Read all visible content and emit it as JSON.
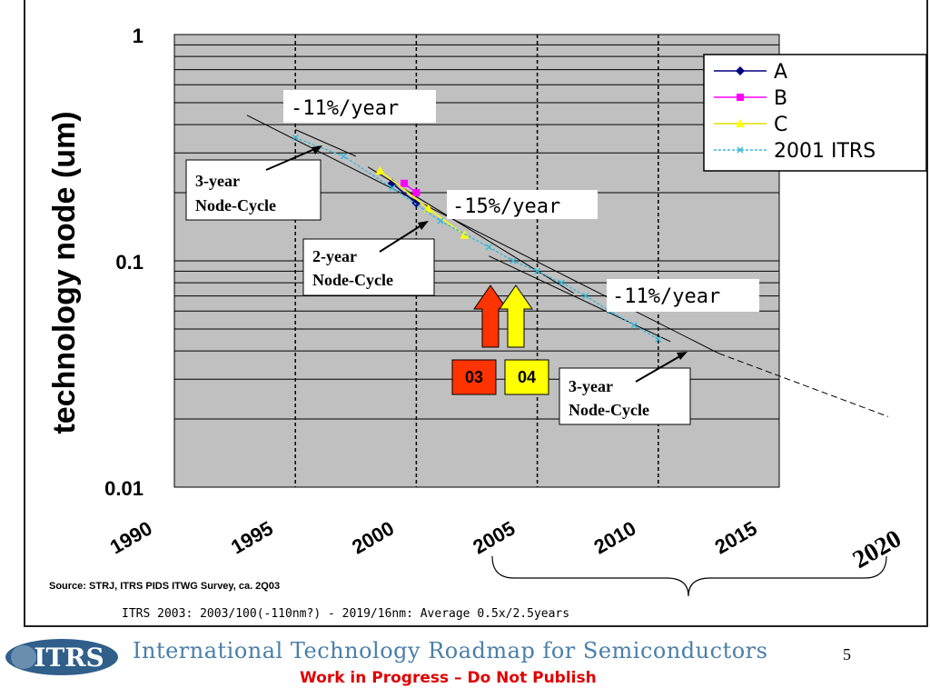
{
  "chart_data": {
    "type": "line",
    "y_scale": "log",
    "ylabel": "technology node (um)",
    "xlim": [
      1990,
      2015
    ],
    "ylim": [
      0.01,
      1
    ],
    "y_ticks": [
      "1",
      "0.1",
      "0.01"
    ],
    "x_ticks": [
      "1990",
      "1995",
      "2000",
      "2005",
      "2010",
      "2015"
    ],
    "x_extra_tick": "2020",
    "grid": true,
    "legend_position": "top-right",
    "series": [
      {
        "name": "A",
        "color": "#000080",
        "marker": "diamond",
        "x": [
          1999,
          2000
        ],
        "y": [
          0.22,
          0.18
        ]
      },
      {
        "name": "B",
        "color": "#ff00ff",
        "marker": "square",
        "x": [
          1999.5,
          2000
        ],
        "y": [
          0.22,
          0.2
        ]
      },
      {
        "name": "C",
        "color": "#ffff00",
        "marker": "triangle",
        "x": [
          1998.5,
          2000.5,
          2002
        ],
        "y": [
          0.25,
          0.17,
          0.13
        ]
      },
      {
        "name": "2001 ITRS",
        "color": "#3cb8d8",
        "marker": "x",
        "x": [
          1995,
          1997,
          1999,
          2001,
          2003,
          2004,
          2005,
          2006,
          2007,
          2008,
          2009,
          2010
        ],
        "y": [
          0.35,
          0.29,
          0.21,
          0.15,
          0.115,
          0.1,
          0.09,
          0.08,
          0.07,
          0.06,
          0.052,
          0.045
        ]
      }
    ],
    "trend_lines": [
      {
        "x": [
          1993,
          2012.5
        ],
        "y": [
          0.44,
          0.039
        ],
        "style": "solid"
      },
      {
        "x": [
          2012.5,
          2019.5
        ],
        "y": [
          0.039,
          0.0205
        ],
        "style": "dashed"
      },
      {
        "x": [
          1995,
          1997.5
        ],
        "y": [
          0.38,
          0.29
        ],
        "style": "solid"
      },
      {
        "x": [
          1998,
          2006.5
        ],
        "y": [
          0.26,
          0.072
        ],
        "style": "solid"
      },
      {
        "x": [
          2003,
          2010.5
        ],
        "y": [
          0.105,
          0.044
        ],
        "style": "solid"
      }
    ],
    "annotations": {
      "rate_top": "-11%/year",
      "rate_mid": "-15%/year",
      "rate_right": "-11%/year",
      "cycle_top_l1": "3-year",
      "cycle_top_l2": "Node-Cycle",
      "cycle_mid_l1": "2-year",
      "cycle_mid_l2": "Node-Cycle",
      "cycle_bottom_l1": "3-year",
      "cycle_bottom_l2": "Node-Cycle",
      "marker_03": "03",
      "marker_04": "04"
    },
    "colors": {
      "plot_bg": "#c0c0c0",
      "arrow_03": "#ff3300",
      "arrow_04": "#ffff00",
      "org_text": "#4a7fa8",
      "wip_text": "#e00000"
    }
  },
  "source": "Source:  STRJ, ITRS PIDS ITWG Survey, ca. 2Q03",
  "note": "ITRS 2003:  2003/100(-110nm?) - 2019/16nm:  Average 0.5x/2.5years",
  "footer": {
    "logo_text": "ITRS",
    "org": "International Technology Roadmap for Semiconductors",
    "wip": "Work in Progress – Do Not Publish",
    "page": "5"
  }
}
